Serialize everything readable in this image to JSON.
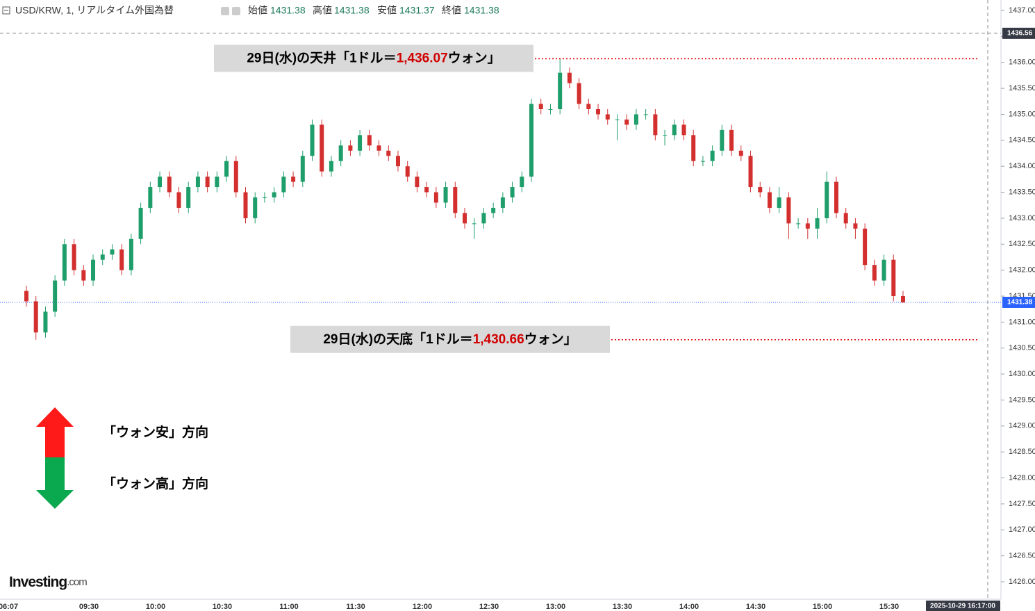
{
  "chart_data": {
    "type": "candlestick",
    "title": "USD/KRW, 1, リアルタイム外国為替",
    "header": {
      "open_label": "始値",
      "open": 1431.38,
      "high_label": "高値",
      "high": 1431.38,
      "low_label": "安値",
      "low": 1431.37,
      "close_label": "終値",
      "close": 1431.38
    },
    "up_color": "#1e9e6a",
    "down_color": "#d32f2f",
    "candles": [
      [
        1431.6,
        1431.7,
        1431.3,
        1431.4
      ],
      [
        1431.4,
        1431.5,
        1430.66,
        1430.8
      ],
      [
        1430.8,
        1431.3,
        1430.7,
        1431.2
      ],
      [
        1431.2,
        1431.9,
        1431.1,
        1431.8
      ],
      [
        1431.8,
        1432.6,
        1431.7,
        1432.5
      ],
      [
        1432.5,
        1432.6,
        1431.9,
        1432.0
      ],
      [
        1432.0,
        1432.1,
        1431.7,
        1431.8
      ],
      [
        1431.8,
        1432.3,
        1431.7,
        1432.2
      ],
      [
        1432.2,
        1432.4,
        1432.1,
        1432.3
      ],
      [
        1432.3,
        1432.5,
        1432.2,
        1432.4
      ],
      [
        1432.4,
        1432.5,
        1431.9,
        1432.0
      ],
      [
        1432.0,
        1432.7,
        1431.9,
        1432.6
      ],
      [
        1432.6,
        1433.3,
        1432.5,
        1433.2
      ],
      [
        1433.2,
        1433.7,
        1433.1,
        1433.6
      ],
      [
        1433.6,
        1433.9,
        1433.5,
        1433.8
      ],
      [
        1433.8,
        1433.9,
        1433.4,
        1433.5
      ],
      [
        1433.5,
        1433.6,
        1433.1,
        1433.2
      ],
      [
        1433.2,
        1433.7,
        1433.1,
        1433.6
      ],
      [
        1433.6,
        1433.9,
        1433.5,
        1433.8
      ],
      [
        1433.8,
        1433.9,
        1433.5,
        1433.6
      ],
      [
        1433.6,
        1433.9,
        1433.5,
        1433.8
      ],
      [
        1433.8,
        1434.2,
        1433.7,
        1434.1
      ],
      [
        1434.1,
        1434.2,
        1433.4,
        1433.5
      ],
      [
        1433.5,
        1433.6,
        1432.9,
        1433.0
      ],
      [
        1433.0,
        1433.5,
        1432.9,
        1433.4
      ],
      [
        1433.4,
        1433.5,
        1433.3,
        1433.4
      ],
      [
        1433.4,
        1433.6,
        1433.3,
        1433.5
      ],
      [
        1433.5,
        1433.9,
        1433.4,
        1433.8
      ],
      [
        1433.8,
        1433.9,
        1433.6,
        1433.7
      ],
      [
        1433.7,
        1434.3,
        1433.6,
        1434.2
      ],
      [
        1434.2,
        1434.9,
        1434.1,
        1434.8
      ],
      [
        1434.8,
        1434.9,
        1433.8,
        1433.9
      ],
      [
        1433.9,
        1434.2,
        1433.8,
        1434.1
      ],
      [
        1434.1,
        1434.5,
        1434.0,
        1434.4
      ],
      [
        1434.4,
        1434.5,
        1434.2,
        1434.3
      ],
      [
        1434.3,
        1434.7,
        1434.2,
        1434.6
      ],
      [
        1434.6,
        1434.7,
        1434.3,
        1434.4
      ],
      [
        1434.4,
        1434.5,
        1434.2,
        1434.3
      ],
      [
        1434.3,
        1434.4,
        1434.1,
        1434.2
      ],
      [
        1434.2,
        1434.3,
        1433.9,
        1434.0
      ],
      [
        1434.0,
        1434.1,
        1433.7,
        1433.8
      ],
      [
        1433.8,
        1433.9,
        1433.5,
        1433.6
      ],
      [
        1433.6,
        1433.7,
        1433.4,
        1433.5
      ],
      [
        1433.5,
        1433.6,
        1433.2,
        1433.3
      ],
      [
        1433.3,
        1433.7,
        1433.2,
        1433.6
      ],
      [
        1433.6,
        1433.7,
        1433.0,
        1433.1
      ],
      [
        1433.1,
        1433.2,
        1432.8,
        1432.9
      ],
      [
        1432.9,
        1433.0,
        1432.6,
        1432.9
      ],
      [
        1432.9,
        1433.2,
        1432.8,
        1433.1
      ],
      [
        1433.1,
        1433.3,
        1433.0,
        1433.2
      ],
      [
        1433.2,
        1433.5,
        1433.1,
        1433.4
      ],
      [
        1433.4,
        1433.7,
        1433.3,
        1433.6
      ],
      [
        1433.6,
        1433.9,
        1433.5,
        1433.8
      ],
      [
        1433.8,
        1435.3,
        1433.7,
        1435.2
      ],
      [
        1435.2,
        1435.3,
        1435.0,
        1435.1
      ],
      [
        1435.1,
        1435.2,
        1435.0,
        1435.1
      ],
      [
        1435.1,
        1436.07,
        1435.0,
        1435.8
      ],
      [
        1435.8,
        1435.9,
        1435.5,
        1435.6
      ],
      [
        1435.6,
        1435.7,
        1435.1,
        1435.2
      ],
      [
        1435.2,
        1435.3,
        1435.0,
        1435.1
      ],
      [
        1435.1,
        1435.2,
        1434.9,
        1435.0
      ],
      [
        1435.0,
        1435.1,
        1434.8,
        1434.9
      ],
      [
        1434.9,
        1435.0,
        1434.5,
        1434.9
      ],
      [
        1434.9,
        1435.0,
        1434.7,
        1434.8
      ],
      [
        1434.8,
        1435.1,
        1434.7,
        1435.0
      ],
      [
        1435.0,
        1435.1,
        1434.9,
        1435.0
      ],
      [
        1435.0,
        1435.1,
        1434.5,
        1434.6
      ],
      [
        1434.6,
        1434.7,
        1434.4,
        1434.6
      ],
      [
        1434.6,
        1434.9,
        1434.5,
        1434.8
      ],
      [
        1434.8,
        1434.9,
        1434.5,
        1434.6
      ],
      [
        1434.6,
        1434.7,
        1434.0,
        1434.1
      ],
      [
        1434.1,
        1434.2,
        1434.0,
        1434.1
      ],
      [
        1434.1,
        1434.4,
        1434.0,
        1434.3
      ],
      [
        1434.3,
        1434.8,
        1434.2,
        1434.7
      ],
      [
        1434.7,
        1434.8,
        1434.2,
        1434.3
      ],
      [
        1434.3,
        1434.4,
        1434.1,
        1434.2
      ],
      [
        1434.2,
        1434.3,
        1433.5,
        1433.6
      ],
      [
        1433.6,
        1433.7,
        1433.4,
        1433.5
      ],
      [
        1433.5,
        1433.6,
        1433.1,
        1433.2
      ],
      [
        1433.2,
        1433.6,
        1433.1,
        1433.4
      ],
      [
        1433.4,
        1433.5,
        1432.6,
        1432.9
      ],
      [
        1432.9,
        1433.0,
        1432.8,
        1432.9
      ],
      [
        1432.9,
        1433.0,
        1432.6,
        1432.8
      ],
      [
        1432.8,
        1433.2,
        1432.6,
        1433.0
      ],
      [
        1433.0,
        1433.9,
        1432.9,
        1433.7
      ],
      [
        1433.7,
        1433.8,
        1433.0,
        1433.1
      ],
      [
        1433.1,
        1433.2,
        1432.8,
        1432.9
      ],
      [
        1432.9,
        1433.0,
        1432.6,
        1432.8
      ],
      [
        1432.8,
        1432.9,
        1432.0,
        1432.1
      ],
      [
        1432.1,
        1432.2,
        1431.7,
        1431.8
      ],
      [
        1431.8,
        1432.3,
        1431.7,
        1432.2
      ],
      [
        1432.2,
        1432.3,
        1431.4,
        1431.5
      ],
      [
        1431.5,
        1431.6,
        1431.37,
        1431.38
      ]
    ],
    "ylim": [
      1425.7,
      1437.2
    ],
    "yticks": [
      {
        "value": 1426,
        "label": "1426.00"
      },
      {
        "value": 1426.5,
        "label": "1426.50"
      },
      {
        "value": 1427,
        "label": "1427.00"
      },
      {
        "value": 1427.5,
        "label": "1427.50"
      },
      {
        "value": 1428,
        "label": "1428.00"
      },
      {
        "value": 1428.5,
        "label": "1428.50"
      },
      {
        "value": 1429,
        "label": "1429.00"
      },
      {
        "value": 1429.5,
        "label": "1429.50"
      },
      {
        "value": 1430,
        "label": "1430.00"
      },
      {
        "value": 1430.5,
        "label": "1430.50"
      },
      {
        "value": 1431,
        "label": "1431.00"
      },
      {
        "value": 1431.5,
        "label": "1431.50"
      },
      {
        "value": 1432,
        "label": "1432.00"
      },
      {
        "value": 1432.5,
        "label": "1432.50"
      },
      {
        "value": 1433,
        "label": "1433.00"
      },
      {
        "value": 1433.5,
        "label": "1433.50"
      },
      {
        "value": 1434,
        "label": "1434.00"
      },
      {
        "value": 1434.5,
        "label": "1434.50"
      },
      {
        "value": 1435,
        "label": "1435.00"
      },
      {
        "value": 1435.5,
        "label": "1435.50"
      },
      {
        "value": 1436,
        "label": "1436.00"
      },
      {
        "value": 1436.5,
        "label": "1436.50"
      },
      {
        "value": 1437,
        "label": "1437.00"
      }
    ],
    "xtick_labels": [
      "06:07",
      "09:30",
      "10:00",
      "10:30",
      "11:00",
      "11:30",
      "12:00",
      "12:30",
      "13:00",
      "13:30",
      "14:00",
      "14:30",
      "15:00",
      "15:30"
    ],
    "crosshair": {
      "value": 1436.56,
      "label": "1436.56",
      "time": "2025-10-29 16:17:00"
    },
    "last_price": {
      "value": 1431.38,
      "label": "1431.38"
    },
    "annotations": [
      {
        "prefix": "29日(水)の天井「1ドル＝",
        "value": 1436.07,
        "value_label": "1,436.07",
        "suffix": "ウォン」"
      },
      {
        "prefix": "29日(水)の天底「1ドル＝",
        "value": 1430.66,
        "value_label": "1,430.66",
        "suffix": "ウォン」"
      }
    ],
    "legend": {
      "up": "「ウォン安」方向",
      "down": "「ウォン高」方向"
    },
    "logo": {
      "main": "Investing",
      "suffix": ".com"
    }
  }
}
